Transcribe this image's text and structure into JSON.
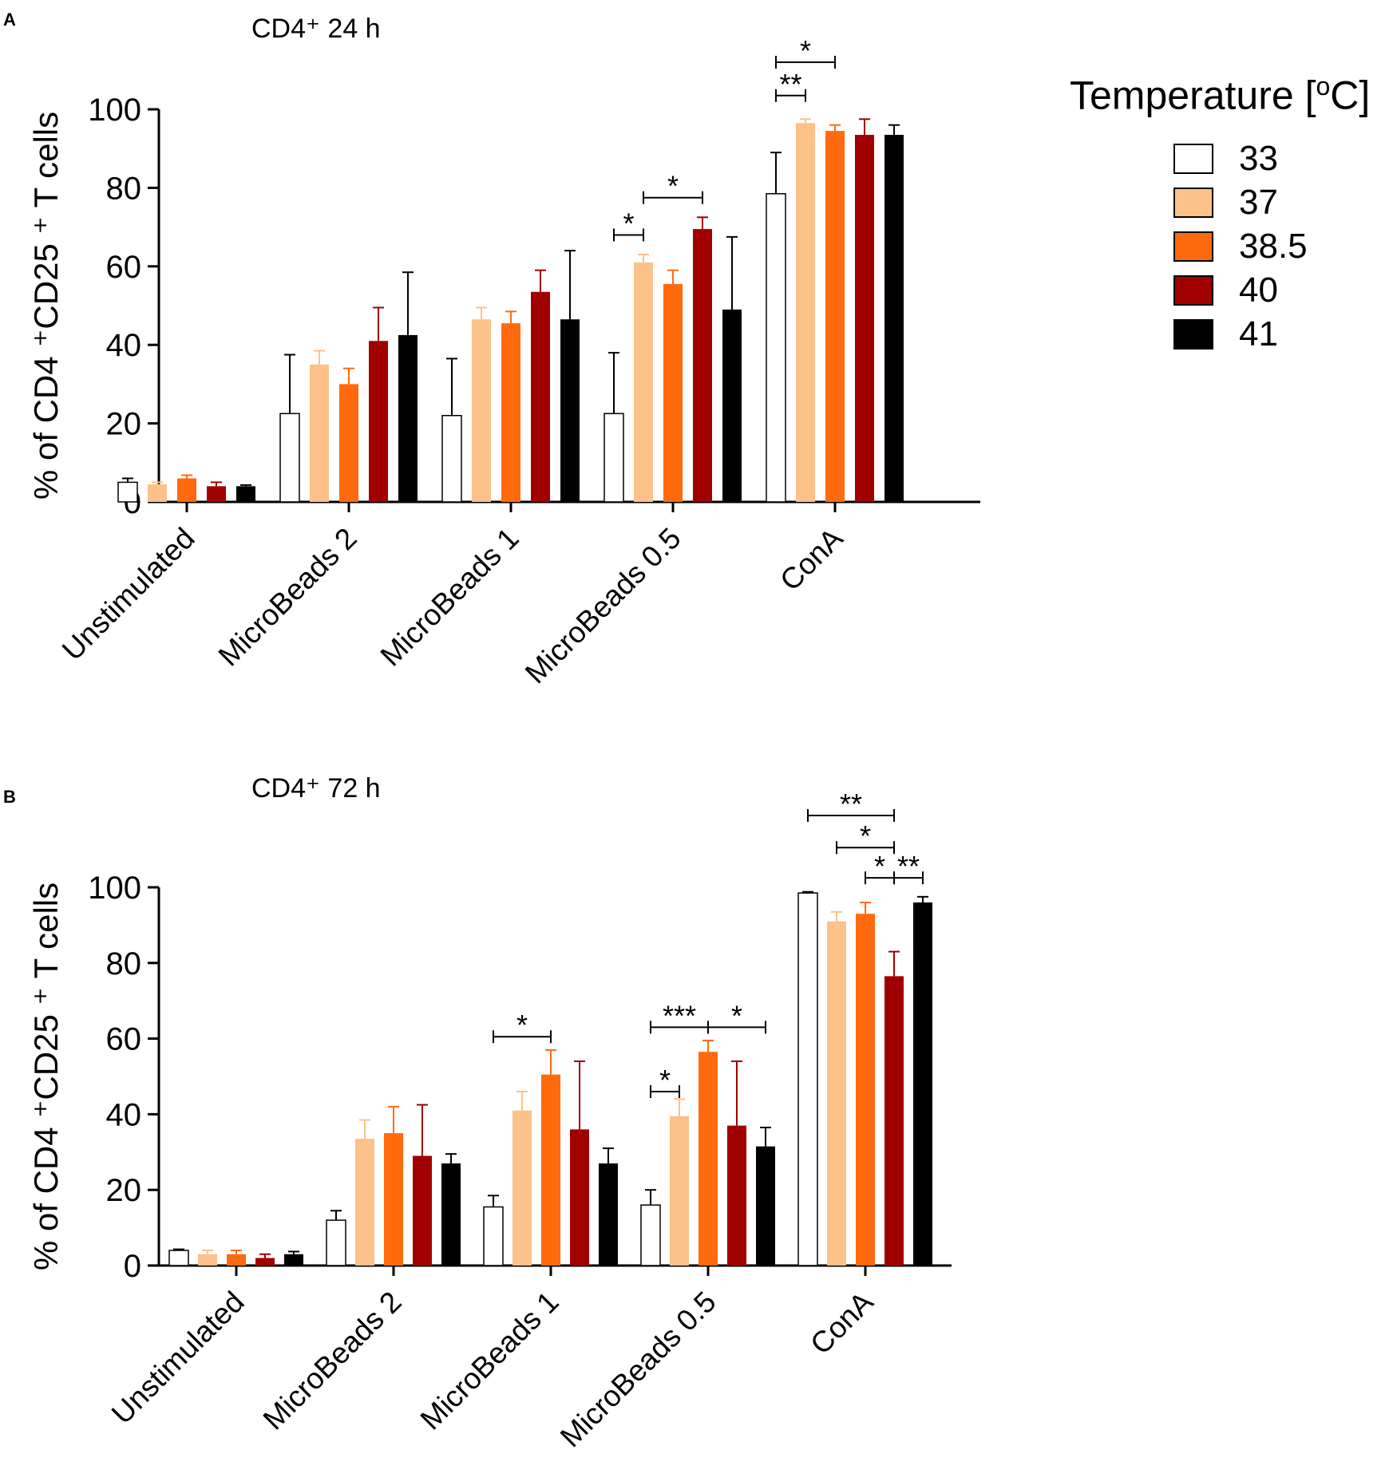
{
  "legend": {
    "title_prefix": "Temperature [",
    "title_sup": "o",
    "title_suffix": "C]",
    "items": [
      {
        "label": "33",
        "color": "#ffffff"
      },
      {
        "label": "37",
        "color": "#fcc28a"
      },
      {
        "label": "38.5",
        "color": "#ff6a0f"
      },
      {
        "label": "40",
        "color": "#a10000"
      },
      {
        "label": "41",
        "color": "#000000"
      }
    ]
  },
  "chart_data": [
    {
      "panel": "A",
      "type": "bar",
      "title": "CD4⁺  24 h",
      "ylabel": "% of CD4 ⁺CD25 ⁺ T cells",
      "xlabel": "",
      "ylim": [
        0,
        100
      ],
      "yticks": [
        "0",
        "20",
        "40",
        "60",
        "80",
        "100"
      ],
      "categories": [
        "Unstimulated",
        "MicroBeads 2",
        "MicroBeads 1",
        "MicroBeads 0.5",
        "ConA"
      ],
      "series": [
        {
          "name": "33",
          "values": [
            5,
            22.5,
            22,
            22.5,
            78.5
          ],
          "errors": [
            1,
            15,
            14.5,
            15.5,
            10.5
          ]
        },
        {
          "name": "37",
          "values": [
            4.5,
            35,
            46.5,
            61,
            96.5
          ],
          "errors": [
            0.5,
            3.5,
            3,
            2,
            1
          ]
        },
        {
          "name": "38.5",
          "values": [
            6,
            30,
            45.5,
            55.5,
            94.5
          ],
          "errors": [
            0.8,
            4,
            3,
            3.5,
            1.5
          ]
        },
        {
          "name": "40",
          "values": [
            4,
            41,
            53.5,
            69.5,
            93.5
          ],
          "errors": [
            1,
            8.5,
            5.5,
            3,
            4
          ]
        },
        {
          "name": "41",
          "values": [
            4,
            42.5,
            46.5,
            49,
            93.5
          ],
          "errors": [
            0.3,
            16,
            17.5,
            18.5,
            2.5
          ]
        }
      ],
      "significance": [
        {
          "category": "MicroBeads 0.5",
          "from": "37",
          "to": "40",
          "y": 77.5,
          "label": "*"
        },
        {
          "category": "MicroBeads 0.5",
          "from": "33",
          "to": "37",
          "y": 68,
          "label": "*"
        },
        {
          "category": "ConA",
          "from": "33",
          "to": "38.5",
          "y": 112,
          "label": "*"
        },
        {
          "category": "ConA",
          "from": "33",
          "to": "37",
          "y": 103.5,
          "label": "**"
        }
      ]
    },
    {
      "panel": "B",
      "type": "bar",
      "title": "CD4⁺  72 h",
      "ylabel": "% of CD4 ⁺CD25 ⁺ T cells",
      "xlabel": "",
      "ylim": [
        0,
        100
      ],
      "yticks": [
        "0",
        "20",
        "40",
        "60",
        "80",
        "100"
      ],
      "categories": [
        "Unstimulated",
        "MicroBeads 2",
        "MicroBeads 1",
        "MicroBeads 0.5",
        "ConA"
      ],
      "series": [
        {
          "name": "33",
          "values": [
            4,
            12,
            15.5,
            16,
            98.5
          ],
          "errors": [
            0.3,
            2.5,
            3,
            4,
            0.3
          ]
        },
        {
          "name": "37",
          "values": [
            3,
            33.5,
            41,
            39.5,
            91
          ],
          "errors": [
            1,
            5,
            5,
            4.5,
            2.5
          ]
        },
        {
          "name": "38.5",
          "values": [
            3,
            35,
            50.5,
            56.5,
            93
          ],
          "errors": [
            1,
            7,
            6.5,
            3,
            3
          ]
        },
        {
          "name": "40",
          "values": [
            2,
            29,
            36,
            37,
            76.5
          ],
          "errors": [
            1,
            13.5,
            18,
            17,
            6.5
          ]
        },
        {
          "name": "41",
          "values": [
            3,
            27,
            27,
            31.5,
            96
          ],
          "errors": [
            0.7,
            2.5,
            4,
            5,
            1.5
          ]
        }
      ],
      "significance": [
        {
          "category": "MicroBeads 1",
          "from": "33",
          "to": "38.5",
          "y": 60.5,
          "label": "*"
        },
        {
          "category": "MicroBeads 0.5",
          "from": "33",
          "to": "38.5",
          "y": 63,
          "label": "***"
        },
        {
          "category": "MicroBeads 0.5",
          "from": "38.5",
          "to": "41",
          "y": 63,
          "label": "*"
        },
        {
          "category": "MicroBeads 0.5",
          "from": "33",
          "to": "37",
          "y": 46,
          "label": "*"
        },
        {
          "category": "ConA",
          "from": "33",
          "to": "40",
          "y": 119,
          "label": "**"
        },
        {
          "category": "ConA",
          "from": "37",
          "to": "40",
          "y": 110.5,
          "label": "*"
        },
        {
          "category": "ConA",
          "from": "38.5",
          "to": "40",
          "y": 102.5,
          "label": "*"
        },
        {
          "category": "ConA",
          "from": "40",
          "to": "41",
          "y": 102.5,
          "label": "**"
        }
      ]
    }
  ]
}
